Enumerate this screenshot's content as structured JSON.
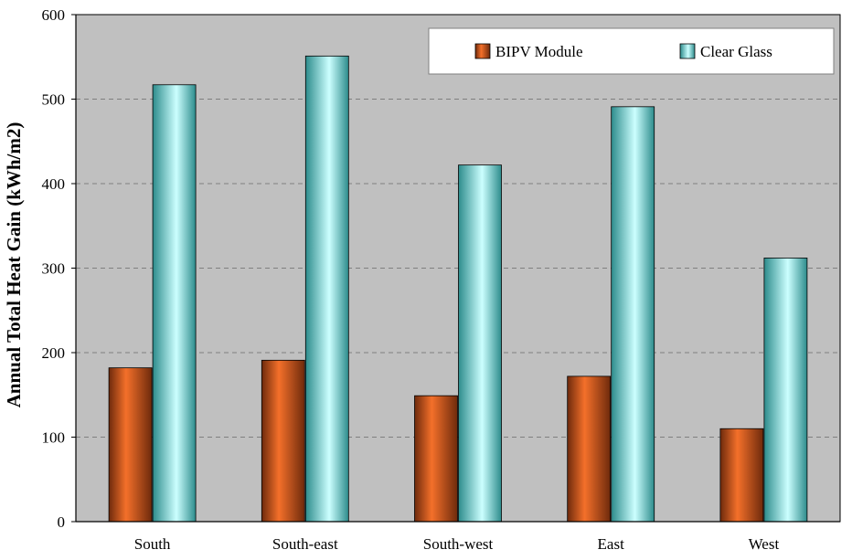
{
  "chart_data": {
    "type": "bar",
    "title": "",
    "xlabel": "",
    "ylabel": "Annual Total Heat Gain (kWh/m2)",
    "ylim": [
      0,
      600
    ],
    "yticks": [
      "0",
      "100",
      "200",
      "300",
      "400",
      "500",
      "600"
    ],
    "grid": true,
    "legend_position": "top-right",
    "categories": [
      "South",
      "South-east",
      "South-west",
      "East",
      "West"
    ],
    "series": [
      {
        "name": "BIPV Module",
        "values": [
          182,
          191,
          149,
          172,
          110
        ]
      },
      {
        "name": "Clear Glass",
        "values": [
          517,
          551,
          422,
          491,
          312
        ]
      }
    ]
  },
  "colors": {
    "plot_background": "#c0c0c0",
    "grid": "#7f7f7f",
    "bipv_light": "#f4702a",
    "bipv_dark": "#6e2a0c",
    "glass_light": "#ccffff",
    "glass_dark": "#2d8c8c"
  }
}
